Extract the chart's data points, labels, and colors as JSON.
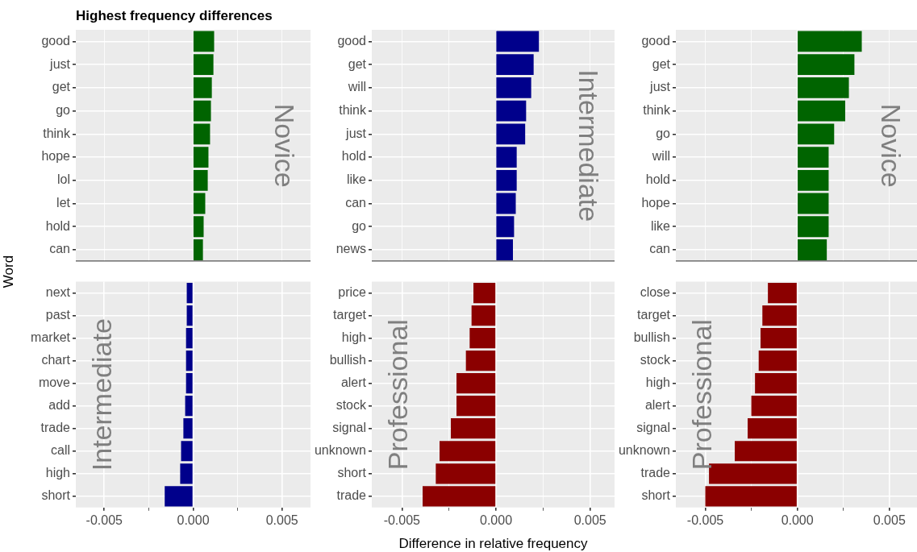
{
  "chart_data": [
    {
      "type": "bar",
      "orientation": "horizontal",
      "title": "Highest frequency differences",
      "ylabel": "Word",
      "tick_labels": "y",
      "categories": [
        "good",
        "just",
        "get",
        "go",
        "think",
        "hope",
        "lol",
        "let",
        "hold",
        "can"
      ],
      "values": [
        0.00118,
        0.00114,
        0.00105,
        0.001,
        0.00095,
        0.00086,
        0.00082,
        0.00068,
        0.00059,
        0.00055
      ],
      "color": "#006400",
      "xlim": [
        -0.0066,
        0.0066
      ],
      "xticks": [
        {
          "value": -0.005,
          "label": null
        },
        {
          "value": -0.0025,
          "label": null
        },
        {
          "value": 0,
          "label": null
        },
        {
          "value": 0.0025,
          "label": null
        },
        {
          "value": 0.005,
          "label": null
        }
      ],
      "grid": true,
      "annotations": [
        "Novice"
      ]
    },
    {
      "type": "bar",
      "orientation": "horizontal",
      "tick_labels": "y",
      "categories": [
        "good",
        "get",
        "will",
        "think",
        "just",
        "hold",
        "like",
        "can",
        "go",
        "news"
      ],
      "values": [
        0.00228,
        0.002,
        0.00187,
        0.0016,
        0.00155,
        0.0011,
        0.0011,
        0.00105,
        0.00096,
        0.0009
      ],
      "color": "#00008b",
      "xlim": [
        -0.0066,
        0.0063
      ],
      "xticks": [
        {
          "value": -0.005,
          "label": null
        },
        {
          "value": -0.0025,
          "label": null
        },
        {
          "value": 0,
          "label": null
        },
        {
          "value": 0.0025,
          "label": null
        },
        {
          "value": 0.005,
          "label": null
        }
      ],
      "grid": true,
      "annotations": [
        "Intermediate"
      ]
    },
    {
      "type": "bar",
      "orientation": "horizontal",
      "tick_labels": "y",
      "categories": [
        "good",
        "get",
        "just",
        "think",
        "go",
        "will",
        "hold",
        "hope",
        "like",
        "can"
      ],
      "values": [
        0.0035,
        0.0031,
        0.0028,
        0.0026,
        0.002,
        0.0017,
        0.0017,
        0.0017,
        0.0017,
        0.0016
      ],
      "color": "#006400",
      "xlim": [
        -0.0066,
        0.0065
      ],
      "xticks": [
        {
          "value": -0.005,
          "label": null
        },
        {
          "value": -0.0025,
          "label": null
        },
        {
          "value": 0,
          "label": null
        },
        {
          "value": 0.0025,
          "label": null
        },
        {
          "value": 0.005,
          "label": null
        }
      ],
      "grid": true,
      "annotations": [
        "Novice"
      ]
    },
    {
      "type": "bar",
      "orientation": "horizontal",
      "categories": [
        "next",
        "past",
        "market",
        "chart",
        "move",
        "add",
        "trade",
        "call",
        "high",
        "short"
      ],
      "values": [
        -0.00036,
        -0.00036,
        -0.0004,
        -0.0004,
        -0.0004,
        -0.00045,
        -0.00055,
        -0.00068,
        -0.00073,
        -0.0016
      ],
      "color": "#00008b",
      "xlim": [
        -0.0066,
        0.0066
      ],
      "xticks": [
        {
          "value": -0.005,
          "label": "-0.005"
        },
        {
          "value": -0.0025,
          "label": null
        },
        {
          "value": 0,
          "label": "0.000"
        },
        {
          "value": 0.0025,
          "label": null
        },
        {
          "value": 0.005,
          "label": "0.005"
        }
      ],
      "grid": true,
      "annotations": [
        "Intermediate"
      ]
    },
    {
      "type": "bar",
      "orientation": "horizontal",
      "xlabel": "Difference in relative frequency",
      "categories": [
        "price",
        "target",
        "high",
        "bullish",
        "alert",
        "stock",
        "signal",
        "unknown",
        "short",
        "trade"
      ],
      "values": [
        -0.0012,
        -0.0013,
        -0.0014,
        -0.0016,
        -0.0021,
        -0.0021,
        -0.0024,
        -0.003,
        -0.0032,
        -0.0039
      ],
      "color": "#8b0000",
      "xlim": [
        -0.0066,
        0.0063
      ],
      "xticks": [
        {
          "value": -0.005,
          "label": "-0.005"
        },
        {
          "value": -0.0025,
          "label": null
        },
        {
          "value": 0,
          "label": "0.000"
        },
        {
          "value": 0.0025,
          "label": null
        },
        {
          "value": 0.005,
          "label": "0.005"
        }
      ],
      "grid": true,
      "annotations": [
        "Professional"
      ]
    },
    {
      "type": "bar",
      "orientation": "horizontal",
      "categories": [
        "close",
        "target",
        "bullish",
        "stock",
        "high",
        "alert",
        "signal",
        "unknown",
        "trade",
        "short"
      ],
      "values": [
        -0.0016,
        -0.0019,
        -0.002,
        -0.0021,
        -0.0023,
        -0.0025,
        -0.0027,
        -0.0034,
        -0.0048,
        -0.005
      ],
      "color": "#8b0000",
      "xlim": [
        -0.0066,
        0.0065
      ],
      "xticks": [
        {
          "value": -0.005,
          "label": "-0.005"
        },
        {
          "value": -0.0025,
          "label": null
        },
        {
          "value": 0,
          "label": "0.000"
        },
        {
          "value": 0.0025,
          "label": null
        },
        {
          "value": 0.005,
          "label": "0.005"
        }
      ],
      "grid": true,
      "annotations": [
        "Professional"
      ]
    }
  ]
}
